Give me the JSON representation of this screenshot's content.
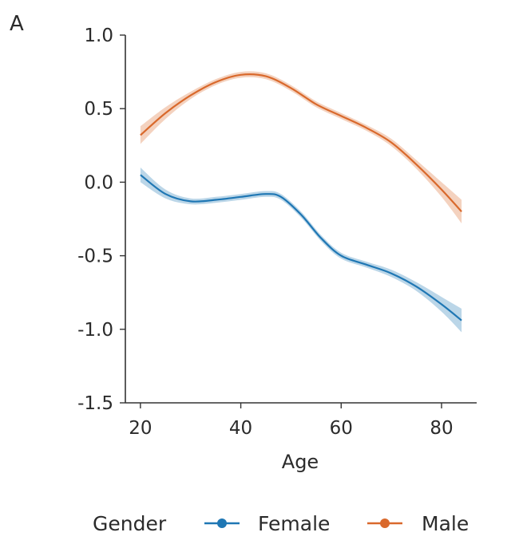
{
  "panel_label": "A",
  "chart_data": {
    "type": "line",
    "title": "",
    "xlabel": "Age",
    "ylabel": "",
    "xlim": [
      17,
      87
    ],
    "ylim": [
      -1.5,
      1.0
    ],
    "xticks": [
      20,
      40,
      60,
      80
    ],
    "xtick_labels": [
      "20",
      "40",
      "60",
      "80"
    ],
    "yticks": [
      1.0,
      0.5,
      0.0,
      -0.5,
      -1.0,
      -1.5
    ],
    "ytick_labels": [
      "1.0",
      "0.5",
      "0.0",
      "-0.5",
      "-1.0",
      "-1.5"
    ],
    "grid": false,
    "legend": {
      "title": "Gender",
      "placement": "bottom",
      "entries": [
        "Female",
        "Male"
      ]
    },
    "series": [
      {
        "name": "Female",
        "color": "#1f77b4",
        "x": [
          20,
          25,
          30,
          35,
          40,
          45,
          48,
          52,
          56,
          60,
          65,
          70,
          75,
          80,
          84
        ],
        "y": [
          0.05,
          -0.08,
          -0.13,
          -0.12,
          -0.1,
          -0.08,
          -0.1,
          -0.22,
          -0.38,
          -0.5,
          -0.56,
          -0.62,
          -0.71,
          -0.83,
          -0.94
        ],
        "band": [
          0.05,
          0.03,
          0.02,
          0.02,
          0.02,
          0.02,
          0.02,
          0.02,
          0.02,
          0.02,
          0.02,
          0.025,
          0.03,
          0.05,
          0.08
        ]
      },
      {
        "name": "Male",
        "color": "#d9692c",
        "x": [
          20,
          25,
          30,
          35,
          40,
          45,
          50,
          55,
          60,
          65,
          70,
          75,
          80,
          84
        ],
        "y": [
          0.32,
          0.47,
          0.59,
          0.68,
          0.73,
          0.72,
          0.64,
          0.53,
          0.45,
          0.37,
          0.27,
          0.12,
          -0.05,
          -0.2
        ],
        "band": [
          0.06,
          0.04,
          0.025,
          0.02,
          0.02,
          0.02,
          0.02,
          0.02,
          0.02,
          0.02,
          0.025,
          0.03,
          0.05,
          0.08
        ]
      }
    ]
  }
}
